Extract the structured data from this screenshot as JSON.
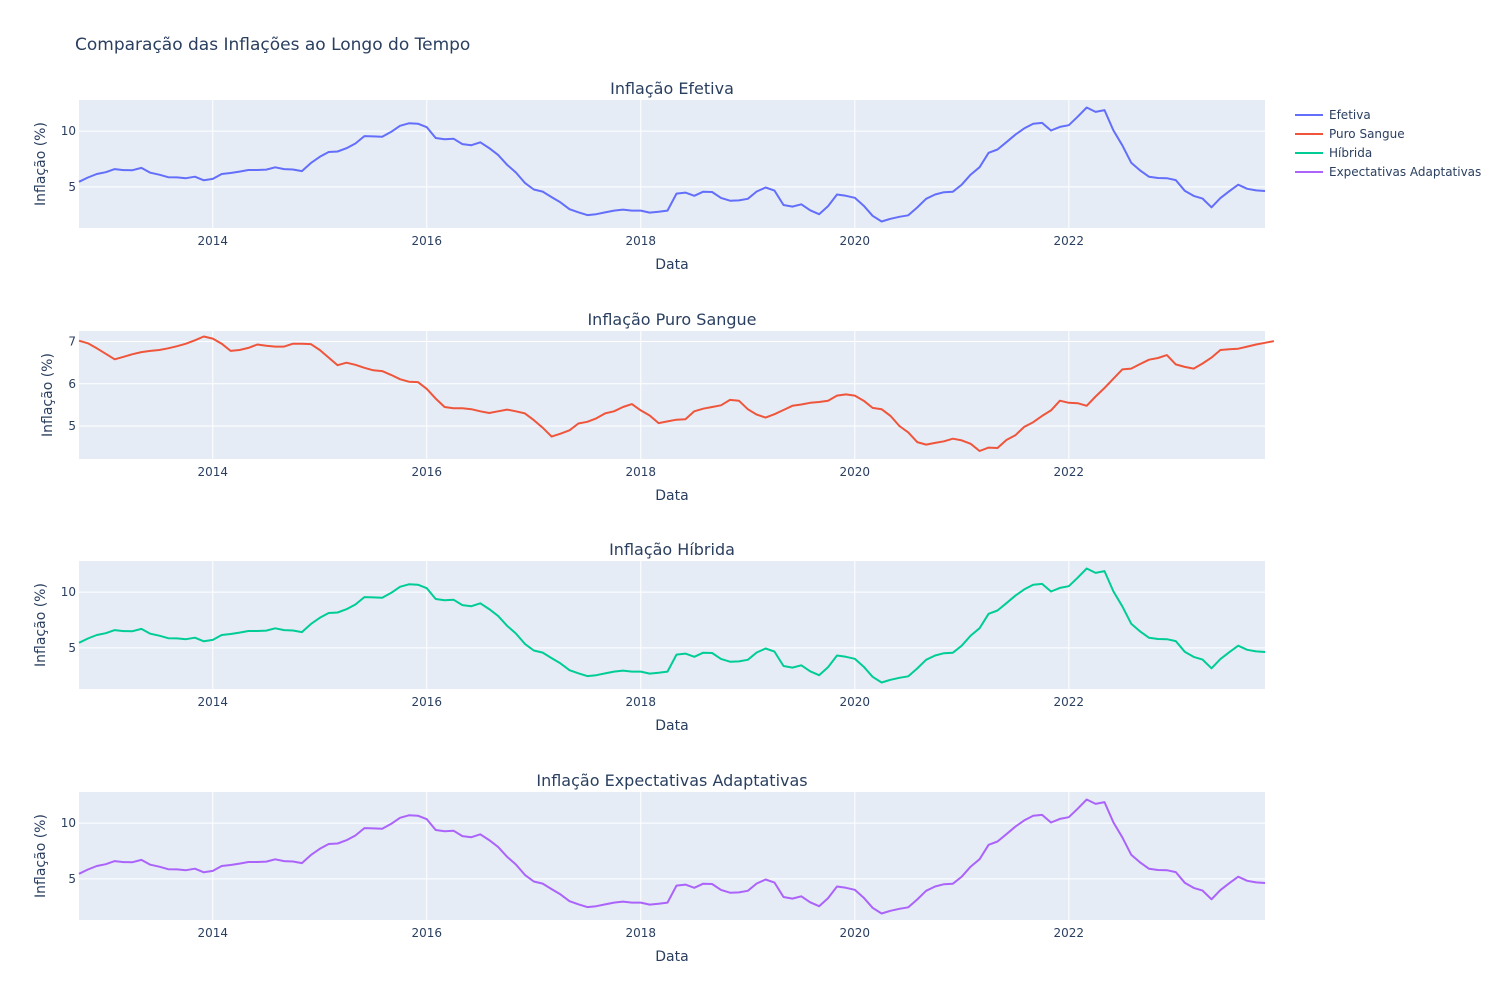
{
  "title": "Comparação das Inflações ao Longo do Tempo",
  "legend": {
    "placement": "top-right",
    "items": [
      {
        "name": "Efetiva",
        "color": "#636efa"
      },
      {
        "name": "Puro Sangue",
        "color": "#ef553b"
      },
      {
        "name": "Híbrida",
        "color": "#00cc96"
      },
      {
        "name": "Expectativas Adaptativas",
        "color": "#ab63fa"
      }
    ]
  },
  "chart_data": [
    {
      "type": "line",
      "title": "Inflação Efetiva",
      "xlabel": "Data",
      "ylabel": "Inflação (%)",
      "xlim": [
        "2012-10",
        "2023-11"
      ],
      "ylim": [
        1.3,
        12.8
      ],
      "x_ticks": [
        "2014",
        "2016",
        "2018",
        "2020",
        "2022"
      ],
      "y_ticks": [
        5,
        10
      ],
      "grid": true,
      "series": [
        {
          "name": "Efetiva",
          "color": "#636efa",
          "x_start": "2012-10",
          "step": "month",
          "values": [
            5.45,
            5.84,
            6.15,
            6.31,
            6.59,
            6.5,
            6.49,
            6.7,
            6.27,
            6.09,
            5.86,
            5.85,
            5.77,
            5.91,
            5.59,
            5.71,
            6.15,
            6.24,
            6.37,
            6.51,
            6.51,
            6.55,
            6.75,
            6.59,
            6.56,
            6.41,
            7.13,
            7.7,
            8.13,
            8.17,
            8.47,
            8.89,
            9.56,
            9.53,
            9.49,
            9.93,
            10.48,
            10.71,
            10.67,
            10.36,
            9.39,
            9.28,
            9.32,
            8.84,
            8.74,
            9.0,
            8.48,
            7.87,
            6.99,
            6.29,
            5.35,
            4.76,
            4.57,
            4.08,
            3.6,
            2.99,
            2.71,
            2.46,
            2.54,
            2.7,
            2.86,
            2.95,
            2.86,
            2.86,
            2.68,
            2.76,
            2.86,
            4.39,
            4.48,
            4.19,
            4.56,
            4.53,
            4.0,
            3.75,
            3.78,
            3.92,
            4.58,
            4.94,
            4.66,
            3.37,
            3.22,
            3.43,
            2.89,
            2.54,
            3.27,
            4.31,
            4.19,
            4.01,
            3.3,
            2.4,
            1.88,
            2.13,
            2.31,
            2.44,
            3.14,
            3.92,
            4.31,
            4.52,
            4.56,
            5.2,
            6.1,
            6.76,
            8.06,
            8.35,
            9.01,
            9.68,
            10.25,
            10.67,
            10.74,
            10.06,
            10.38,
            10.54,
            11.3,
            12.13,
            11.73,
            11.89,
            10.07,
            8.73,
            7.17,
            6.47,
            5.9,
            5.79,
            5.77,
            5.6,
            4.65,
            4.18,
            3.94,
            3.16,
            3.99,
            4.61,
            5.19,
            4.82,
            4.68,
            4.62
          ]
        }
      ]
    },
    {
      "type": "line",
      "title": "Inflação Puro Sangue",
      "xlabel": "Data",
      "ylabel": "Inflação (%)",
      "xlim": [
        "2012-10",
        "2023-11"
      ],
      "ylim": [
        4.22,
        7.25
      ],
      "x_ticks": [
        "2014",
        "2016",
        "2018",
        "2020",
        "2022"
      ],
      "y_ticks": [
        5,
        6,
        7
      ],
      "grid": true,
      "series": [
        {
          "name": "Puro Sangue",
          "color": "#ef553b",
          "x_start": "2012-10",
          "step": "month",
          "values": [
            7.02,
            6.96,
            6.84,
            6.71,
            6.58,
            6.64,
            6.7,
            6.75,
            6.78,
            6.8,
            6.84,
            6.89,
            6.95,
            7.03,
            7.12,
            7.07,
            6.95,
            6.78,
            6.8,
            6.85,
            6.93,
            6.9,
            6.88,
            6.88,
            6.95,
            6.95,
            6.94,
            6.8,
            6.62,
            6.44,
            6.5,
            6.45,
            6.38,
            6.32,
            6.3,
            6.21,
            6.11,
            6.05,
            6.04,
            5.88,
            5.65,
            5.45,
            5.42,
            5.42,
            5.4,
            5.35,
            5.31,
            5.35,
            5.39,
            5.35,
            5.3,
            5.14,
            4.96,
            4.75,
            4.82,
            4.9,
            5.06,
            5.1,
            5.18,
            5.3,
            5.35,
            5.45,
            5.52,
            5.37,
            5.25,
            5.07,
            5.11,
            5.15,
            5.16,
            5.35,
            5.41,
            5.45,
            5.49,
            5.62,
            5.6,
            5.4,
            5.27,
            5.2,
            5.28,
            5.38,
            5.48,
            5.51,
            5.55,
            5.57,
            5.6,
            5.72,
            5.75,
            5.72,
            5.6,
            5.43,
            5.4,
            5.24,
            5.0,
            4.85,
            4.62,
            4.56,
            4.6,
            4.64,
            4.7,
            4.66,
            4.58,
            4.41,
            4.49,
            4.48,
            4.67,
            4.78,
            4.98,
            5.09,
            5.24,
            5.37,
            5.6,
            5.55,
            5.54,
            5.48,
            5.7,
            5.9,
            6.12,
            6.34,
            6.36,
            6.47,
            6.57,
            6.61,
            6.68,
            6.46,
            6.4,
            6.36,
            6.48,
            6.62,
            6.8,
            6.82,
            6.83,
            6.88,
            6.93,
            6.97,
            7.01
          ]
        }
      ]
    },
    {
      "type": "line",
      "title": "Inflação Híbrida",
      "xlabel": "Data",
      "ylabel": "Inflação (%)",
      "xlim": [
        "2012-10",
        "2023-11"
      ],
      "ylim": [
        1.3,
        12.8
      ],
      "x_ticks": [
        "2014",
        "2016",
        "2018",
        "2020",
        "2022"
      ],
      "y_ticks": [
        5,
        10
      ],
      "grid": true,
      "series": [
        {
          "name": "Híbrida",
          "color": "#00cc96",
          "x_start": "2012-10",
          "step": "month",
          "values": [
            5.45,
            5.84,
            6.15,
            6.31,
            6.59,
            6.5,
            6.49,
            6.7,
            6.27,
            6.09,
            5.86,
            5.85,
            5.77,
            5.91,
            5.59,
            5.71,
            6.15,
            6.24,
            6.37,
            6.51,
            6.51,
            6.55,
            6.75,
            6.59,
            6.56,
            6.41,
            7.13,
            7.7,
            8.13,
            8.17,
            8.47,
            8.89,
            9.56,
            9.53,
            9.49,
            9.93,
            10.48,
            10.71,
            10.67,
            10.36,
            9.39,
            9.28,
            9.32,
            8.84,
            8.74,
            9.0,
            8.48,
            7.87,
            6.99,
            6.29,
            5.35,
            4.76,
            4.57,
            4.08,
            3.6,
            2.99,
            2.71,
            2.46,
            2.54,
            2.7,
            2.86,
            2.95,
            2.86,
            2.86,
            2.68,
            2.76,
            2.86,
            4.39,
            4.48,
            4.19,
            4.56,
            4.53,
            4.0,
            3.75,
            3.78,
            3.92,
            4.58,
            4.94,
            4.66,
            3.37,
            3.22,
            3.43,
            2.89,
            2.54,
            3.27,
            4.31,
            4.19,
            4.01,
            3.3,
            2.4,
            1.88,
            2.13,
            2.31,
            2.44,
            3.14,
            3.92,
            4.31,
            4.52,
            4.56,
            5.2,
            6.1,
            6.76,
            8.06,
            8.35,
            9.01,
            9.68,
            10.25,
            10.67,
            10.74,
            10.06,
            10.38,
            10.54,
            11.3,
            12.13,
            11.73,
            11.89,
            10.07,
            8.73,
            7.17,
            6.47,
            5.9,
            5.79,
            5.77,
            5.6,
            4.65,
            4.18,
            3.94,
            3.16,
            3.99,
            4.61,
            5.19,
            4.82,
            4.68,
            4.62
          ]
        }
      ]
    },
    {
      "type": "line",
      "title": "Inflação Expectativas Adaptativas",
      "xlabel": "Data",
      "ylabel": "Inflação (%)",
      "xlim": [
        "2012-10",
        "2023-11"
      ],
      "ylim": [
        1.3,
        12.8
      ],
      "x_ticks": [
        "2014",
        "2016",
        "2018",
        "2020",
        "2022"
      ],
      "y_ticks": [
        5,
        10
      ],
      "grid": true,
      "series": [
        {
          "name": "Expectativas Adaptativas",
          "color": "#ab63fa",
          "x_start": "2012-10",
          "step": "month",
          "values": [
            5.45,
            5.84,
            6.15,
            6.31,
            6.59,
            6.5,
            6.49,
            6.7,
            6.27,
            6.09,
            5.86,
            5.85,
            5.77,
            5.91,
            5.59,
            5.71,
            6.15,
            6.24,
            6.37,
            6.51,
            6.51,
            6.55,
            6.75,
            6.59,
            6.56,
            6.41,
            7.13,
            7.7,
            8.13,
            8.17,
            8.47,
            8.89,
            9.56,
            9.53,
            9.49,
            9.93,
            10.48,
            10.71,
            10.67,
            10.36,
            9.39,
            9.28,
            9.32,
            8.84,
            8.74,
            9.0,
            8.48,
            7.87,
            6.99,
            6.29,
            5.35,
            4.76,
            4.57,
            4.08,
            3.6,
            2.99,
            2.71,
            2.46,
            2.54,
            2.7,
            2.86,
            2.95,
            2.86,
            2.86,
            2.68,
            2.76,
            2.86,
            4.39,
            4.48,
            4.19,
            4.56,
            4.53,
            4.0,
            3.75,
            3.78,
            3.92,
            4.58,
            4.94,
            4.66,
            3.37,
            3.22,
            3.43,
            2.89,
            2.54,
            3.27,
            4.31,
            4.19,
            4.01,
            3.3,
            2.4,
            1.88,
            2.13,
            2.31,
            2.44,
            3.14,
            3.92,
            4.31,
            4.52,
            4.56,
            5.2,
            6.1,
            6.76,
            8.06,
            8.35,
            9.01,
            9.68,
            10.25,
            10.67,
            10.74,
            10.06,
            10.38,
            10.54,
            11.3,
            12.13,
            11.73,
            11.89,
            10.07,
            8.73,
            7.17,
            6.47,
            5.9,
            5.79,
            5.77,
            5.6,
            4.65,
            4.18,
            3.94,
            3.16,
            3.99,
            4.61,
            5.19,
            4.82,
            4.68,
            4.62
          ]
        }
      ]
    }
  ]
}
